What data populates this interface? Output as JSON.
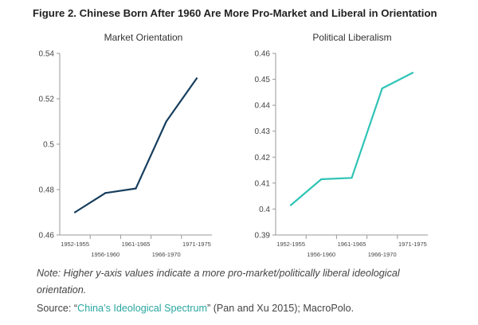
{
  "figure": {
    "title": "Figure 2. Chinese Born After 1960 Are More Pro-Market and Liberal in Orientation",
    "note": "Note: Higher y-axis values indicate a more pro-market/politically liberal ideological orientation.",
    "source_prefix": "Source: “",
    "source_link": "China’s Ideological Spectrum",
    "source_suffix": "” (Pan and Xu 2015); MacroPolo."
  },
  "chart_data": [
    {
      "type": "line",
      "title": "Market Orientation",
      "categories": [
        "1952-1955",
        "1956-1960",
        "1961-1965",
        "1966-1970",
        "1971-1975"
      ],
      "values": [
        0.47,
        0.4785,
        0.4805,
        0.51,
        0.529
      ],
      "ylim": [
        0.46,
        0.54
      ],
      "yticks": [
        0.46,
        0.48,
        0.5,
        0.52,
        0.54
      ],
      "ytick_labels": [
        "0.46",
        "0.48",
        "0.5",
        "0.52",
        "0.54"
      ],
      "xlabel": "",
      "ylabel": "",
      "color": "#173f5f"
    },
    {
      "type": "line",
      "title": "Political Liberalism",
      "categories": [
        "1952-1955",
        "1956-1960",
        "1961-1965",
        "1966-1970",
        "1971-1975"
      ],
      "values": [
        0.4015,
        0.4115,
        0.412,
        0.4465,
        0.4525
      ],
      "ylim": [
        0.39,
        0.46
      ],
      "yticks": [
        0.39,
        0.4,
        0.41,
        0.42,
        0.43,
        0.44,
        0.45,
        0.46
      ],
      "ytick_labels": [
        "0.39",
        "0.4",
        "0.41",
        "0.42",
        "0.43",
        "0.44",
        "0.45",
        "0.46"
      ],
      "xlabel": "",
      "ylabel": "",
      "color": "#2ec4b6"
    }
  ]
}
